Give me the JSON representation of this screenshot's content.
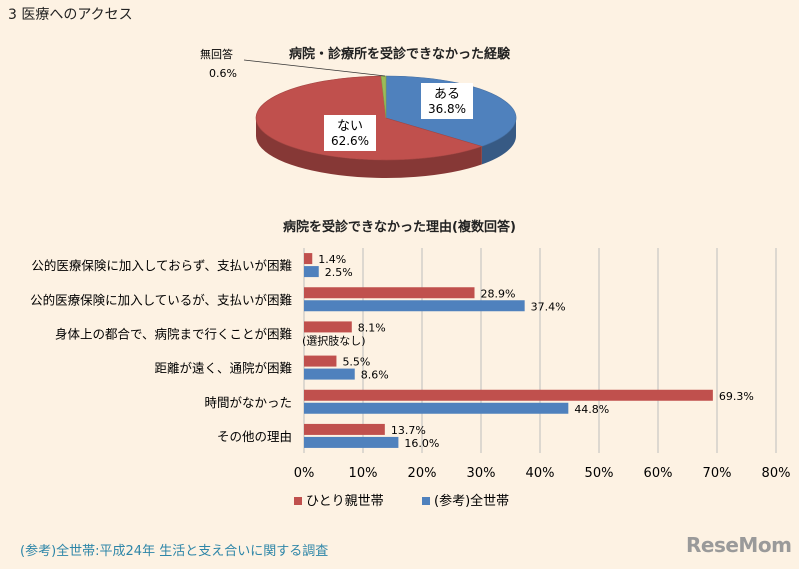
{
  "heading": "3 医療へのアクセス",
  "footer": "(参考)全世帯:平成24年 生活と支え合いに関する調査",
  "brand": "ReseMom",
  "colors": {
    "single_parent": "#c0504d",
    "all_households": "#4f81bd",
    "no_answer": "#9bbb59"
  },
  "chart_data": [
    {
      "type": "pie",
      "title": "病院・診療所を受診できなかった経験",
      "slices": [
        {
          "label": "ある",
          "value": 36.8,
          "display": "36.8%"
        },
        {
          "label": "ない",
          "value": 62.6,
          "display": "62.6%"
        },
        {
          "label": "無回答",
          "value": 0.6,
          "display": "0.6%"
        }
      ]
    },
    {
      "type": "bar",
      "orientation": "horizontal",
      "title": "病院を受診できなかった理由(複数回答)",
      "categories": [
        "公的医療保険に加入しておらず、支払いが困難",
        "公的医療保険に加入しているが、支払いが困難",
        "身体上の都合で、病院まで行くことが困難",
        "距離が遠く、通院が困難",
        "時間がなかった",
        "その他の理由"
      ],
      "series": [
        {
          "name": "ひとり親世帯",
          "values": [
            1.4,
            28.9,
            8.1,
            5.5,
            69.3,
            13.7
          ],
          "labels": [
            "1.4%",
            "28.9%",
            "8.1%",
            "5.5%",
            "69.3%",
            "13.7%"
          ]
        },
        {
          "name": "(参考)全世帯",
          "values": [
            2.5,
            37.4,
            null,
            8.6,
            44.8,
            16.0
          ],
          "labels": [
            "2.5%",
            "37.4%",
            "(選択肢なし)",
            "8.6%",
            "44.8%",
            "16.0%"
          ]
        }
      ],
      "xlim": [
        0,
        80
      ],
      "xticks": [
        "0%",
        "10%",
        "20%",
        "30%",
        "40%",
        "50%",
        "60%",
        "70%",
        "80%"
      ],
      "grid": true,
      "legend": "bottom"
    }
  ]
}
